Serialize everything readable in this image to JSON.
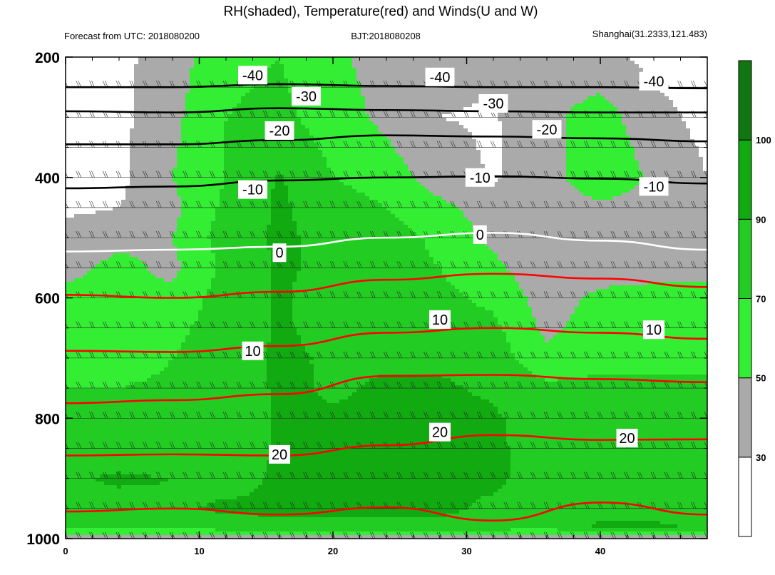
{
  "chart_data": {
    "type": "heatmap",
    "title": "RH(shaded), Temperature(red) and Winds(U and W)",
    "subtitle_left": "Forecast from UTC: 2018080200",
    "subtitle_center": "BJT:2018080208",
    "subtitle_right": "Shanghai(31.2333,121.483)",
    "xlim": [
      0,
      48
    ],
    "ylim": [
      200,
      1000
    ],
    "y_reversed": true,
    "x_ticks": [
      0,
      10,
      20,
      30,
      40
    ],
    "x_tick_labels": [
      "0",
      "10",
      "20",
      "30",
      "40"
    ],
    "y_ticks": [
      200,
      400,
      600,
      800,
      1000
    ],
    "y_tick_labels": [
      "200",
      "400",
      "600",
      "800",
      "1000"
    ],
    "grid": false,
    "legend": "colorbar-right",
    "colorbar": {
      "boundaries": [
        30,
        50,
        70,
        90,
        100
      ],
      "labels": [
        "30",
        "50",
        "70",
        "90",
        "100"
      ],
      "colors": [
        "#ffffff",
        "#aaaaaa",
        "#33ee33",
        "#22cc22",
        "#11aa11",
        "#117711"
      ]
    },
    "rh_field": {
      "x": [
        0,
        4,
        8,
        12,
        16,
        20,
        24,
        28,
        32,
        36,
        40,
        44,
        48
      ],
      "pressure": [
        200,
        300,
        400,
        450,
        500,
        550,
        600,
        650,
        700,
        750,
        800,
        850,
        900,
        950,
        980,
        1000
      ],
      "values": [
        [
          25,
          25,
          40,
          65,
          70,
          55,
          40,
          35,
          35,
          40,
          35,
          25,
          25
        ],
        [
          25,
          25,
          45,
          70,
          75,
          60,
          45,
          30,
          28,
          45,
          60,
          35,
          25
        ],
        [
          22,
          25,
          50,
          70,
          92,
          70,
          60,
          40,
          28,
          40,
          70,
          45,
          30
        ],
        [
          25,
          30,
          45,
          75,
          93,
          80,
          70,
          55,
          40,
          35,
          45,
          40,
          30
        ],
        [
          40,
          45,
          50,
          80,
          93,
          85,
          80,
          65,
          45,
          30,
          35,
          35,
          35
        ],
        [
          45,
          55,
          45,
          75,
          93,
          85,
          78,
          70,
          55,
          35,
          40,
          45,
          45
        ],
        [
          55,
          55,
          55,
          80,
          92,
          82,
          75,
          75,
          65,
          40,
          55,
          55,
          55
        ],
        [
          60,
          60,
          65,
          80,
          92,
          85,
          82,
          80,
          75,
          45,
          60,
          60,
          60
        ],
        [
          65,
          65,
          70,
          80,
          93,
          88,
          88,
          88,
          80,
          55,
          65,
          65,
          65
        ],
        [
          70,
          70,
          72,
          78,
          93,
          88,
          92,
          92,
          88,
          75,
          75,
          75,
          75
        ],
        [
          75,
          75,
          75,
          78,
          92,
          92,
          92,
          92,
          92,
          82,
          80,
          80,
          80
        ],
        [
          80,
          82,
          80,
          80,
          92,
          92,
          92,
          92,
          92,
          85,
          82,
          82,
          82
        ],
        [
          88,
          92,
          90,
          85,
          92,
          92,
          92,
          92,
          92,
          85,
          82,
          82,
          82
        ],
        [
          85,
          85,
          88,
          92,
          92,
          92,
          92,
          92,
          88,
          85,
          85,
          85,
          85
        ],
        [
          70,
          75,
          80,
          85,
          88,
          88,
          88,
          88,
          85,
          82,
          92,
          92,
          88
        ],
        [
          40,
          35,
          30,
          30,
          30,
          30,
          30,
          30,
          30,
          30,
          30,
          30,
          40
        ]
      ]
    },
    "temperature_contours": [
      {
        "level": -40,
        "label": "-40",
        "color": "#000000",
        "x": [
          0,
          8,
          16,
          24,
          32,
          40,
          48
        ],
        "p": [
          250,
          250,
          245,
          248,
          250,
          250,
          252
        ],
        "label_positions": [
          [
            14,
            230
          ],
          [
            28,
            233
          ],
          [
            44,
            240
          ]
        ]
      },
      {
        "level": -30,
        "label": "-30",
        "color": "#000000",
        "x": [
          0,
          8,
          16,
          24,
          32,
          40,
          48
        ],
        "p": [
          290,
          292,
          285,
          288,
          290,
          292,
          292
        ],
        "label_positions": [
          [
            18,
            265
          ],
          [
            32,
            277
          ]
        ]
      },
      {
        "level": -20,
        "label": "-20",
        "color": "#000000",
        "x": [
          0,
          8,
          16,
          24,
          32,
          40,
          48
        ],
        "p": [
          345,
          345,
          338,
          330,
          332,
          335,
          340
        ],
        "label_positions": [
          [
            16,
            322
          ],
          [
            36,
            320
          ]
        ]
      },
      {
        "level": -10,
        "label": "-10",
        "color": "#000000",
        "x": [
          0,
          8,
          16,
          24,
          32,
          40,
          48
        ],
        "p": [
          418,
          415,
          405,
          400,
          398,
          402,
          410
        ],
        "label_positions": [
          [
            14,
            420
          ],
          [
            31,
            400
          ],
          [
            44,
            415
          ]
        ]
      },
      {
        "level": 0,
        "label": "0",
        "color": "#ffffff",
        "x": [
          0,
          8,
          16,
          24,
          32,
          40,
          48
        ],
        "p": [
          523,
          520,
          515,
          500,
          492,
          505,
          520
        ],
        "label_positions": [
          [
            16,
            525
          ],
          [
            31,
            495
          ]
        ]
      },
      {
        "level": 10,
        "label": "10",
        "color": "#ff0000",
        "x": [
          0,
          8,
          16,
          24,
          32,
          40,
          48
        ],
        "p": [
          688,
          690,
          680,
          658,
          650,
          658,
          668
        ],
        "label_positions": [
          [
            14,
            688
          ],
          [
            28,
            636
          ],
          [
            44,
            653
          ]
        ]
      },
      {
        "level": 20,
        "label": "20",
        "color": "#ff0000",
        "x": [
          0,
          8,
          16,
          24,
          32,
          40,
          48
        ],
        "p": [
          862,
          860,
          862,
          845,
          828,
          836,
          835
        ],
        "label_positions": [
          [
            16,
            860
          ],
          [
            28,
            823
          ],
          [
            42,
            833
          ]
        ]
      },
      {
        "level": 5,
        "label": "",
        "color": "#ff0000",
        "x": [
          0,
          8,
          16,
          24,
          32,
          40,
          48
        ],
        "p": [
          595,
          600,
          590,
          570,
          560,
          568,
          582
        ]
      },
      {
        "level": 15,
        "label": "",
        "color": "#ff0000",
        "x": [
          0,
          8,
          16,
          24,
          32,
          40,
          48
        ],
        "p": [
          775,
          770,
          760,
          730,
          728,
          735,
          740
        ]
      },
      {
        "level": 25,
        "label": "",
        "color": "#ff0000",
        "x": [
          0,
          8,
          16,
          24,
          32,
          40,
          48
        ],
        "p": [
          955,
          950,
          960,
          948,
          970,
          940,
          960
        ]
      }
    ],
    "pressure_rows": [
      200,
      250,
      300,
      350,
      400,
      450,
      500,
      550,
      600,
      650,
      700,
      750,
      800,
      850,
      900,
      950,
      1000
    ]
  }
}
